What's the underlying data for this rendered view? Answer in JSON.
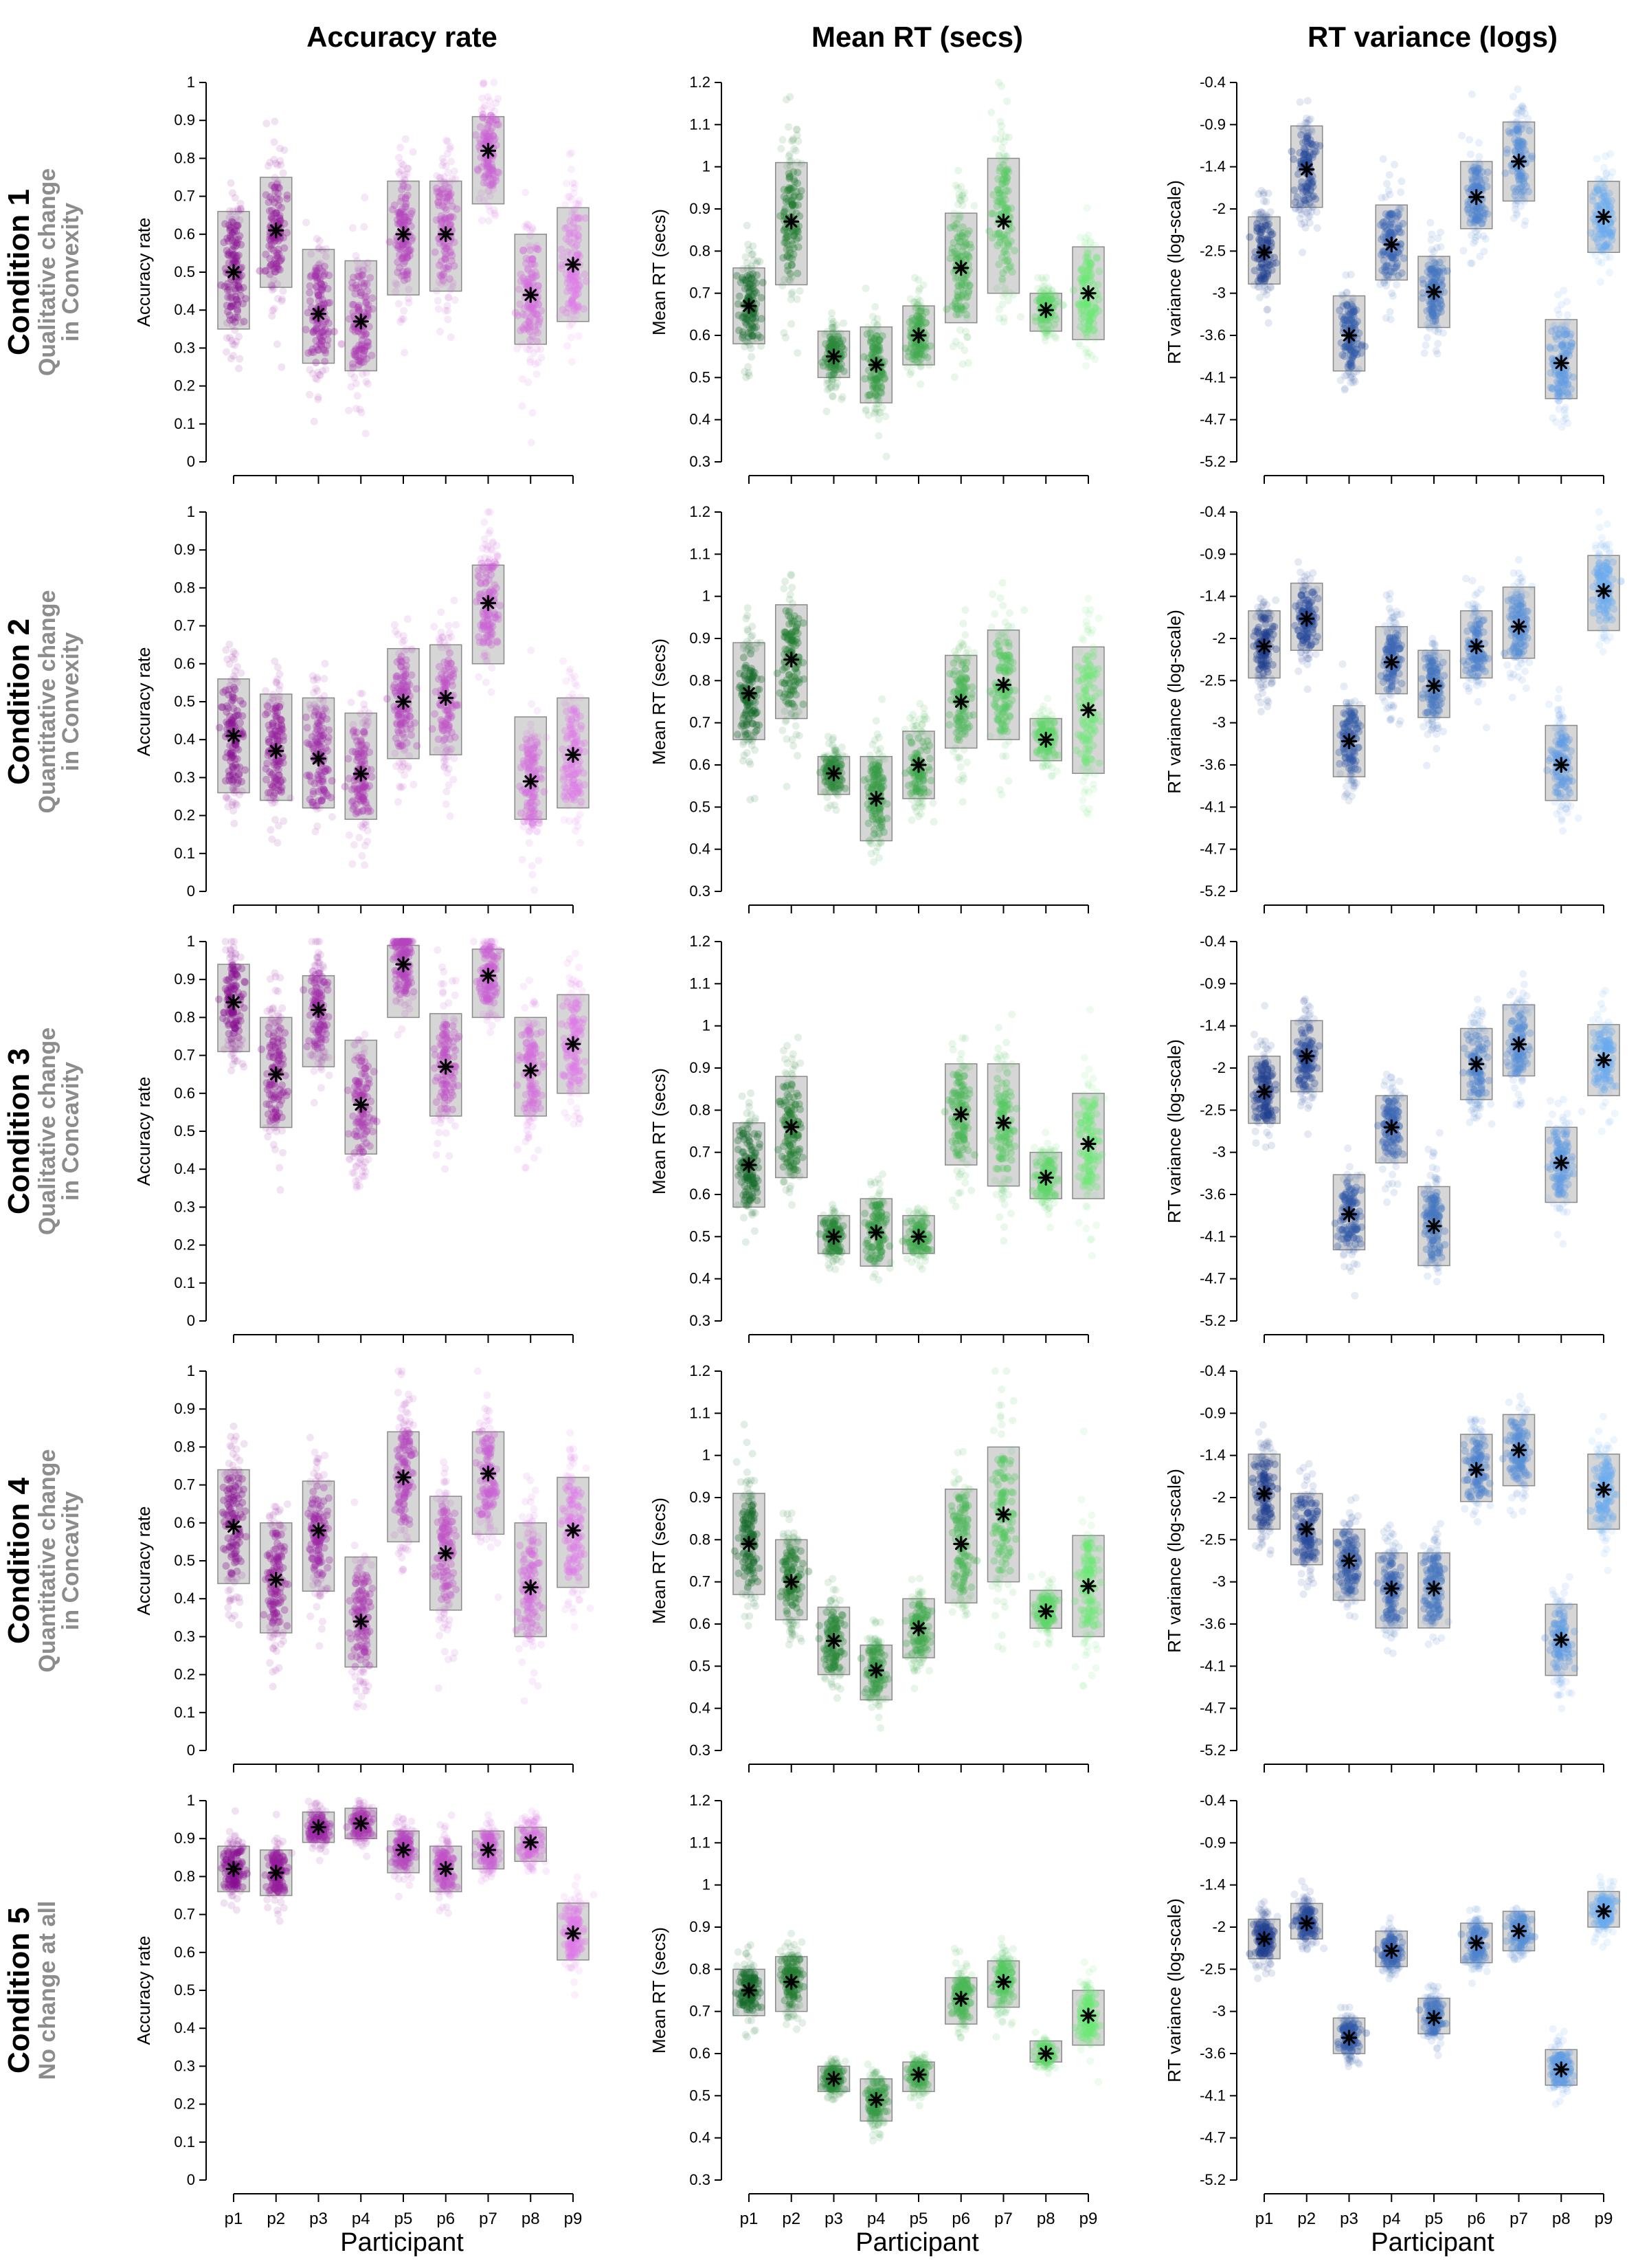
{
  "columns": [
    {
      "title": "Accuracy rate",
      "ylabel": "Accuracy rate",
      "yticks": [
        "0",
        "0.1",
        "0.2",
        "0.3",
        "0.4",
        "0.5",
        "0.6",
        "0.7",
        "0.8",
        "0.9",
        "1"
      ],
      "yrange": [
        0,
        1
      ],
      "color": "#c21fcb",
      "color_light": "#e07ae8",
      "color_dark": "#8a0e92"
    },
    {
      "title": "Mean RT (secs)",
      "ylabel": "Mean RT (secs)",
      "yticks": [
        "0.3",
        "0.4",
        "0.5",
        "0.6",
        "0.7",
        "0.8",
        "0.9",
        "1",
        "1.1",
        "1.2"
      ],
      "yrange": [
        0.3,
        1.2
      ],
      "color": "#2aa335",
      "color_light": "#6be872",
      "color_dark": "#146b27"
    },
    {
      "title": "RT variance (logs)",
      "ylabel": "RT variance (log-scale)",
      "yticks": [
        "-5.2",
        "-4.7",
        "-4.1",
        "-3.6",
        "-3",
        "-2.5",
        "-2",
        "-1.4",
        "-0.9",
        "-0.4"
      ],
      "yrange": [
        -5.2,
        -0.4
      ],
      "color": "#3a74c2",
      "color_light": "#6aaaf0",
      "color_dark": "#1f3f8f"
    }
  ],
  "conditions": [
    {
      "title": "Condition 1",
      "subtitle_1": "Qualitative change",
      "subtitle_2": "in Convexity"
    },
    {
      "title": "Condition 2",
      "subtitle_1": "Quantitative change",
      "subtitle_2": "in Convexity"
    },
    {
      "title": "Condition 3",
      "subtitle_1": "Qualitative change",
      "subtitle_2": "in Concavity"
    },
    {
      "title": "Condition 4",
      "subtitle_1": "Quantitative change",
      "subtitle_2": "in Concavity"
    },
    {
      "title": "Condition 5",
      "subtitle_1": "No change at all",
      "subtitle_2": ""
    }
  ],
  "xlabel": "Participant",
  "participants": [
    "p1",
    "p2",
    "p3",
    "p4",
    "p5",
    "p6",
    "p7",
    "p8",
    "p9"
  ],
  "chart_data": [
    {
      "type": "scatter",
      "condition": "Condition 1",
      "column": "Accuracy rate",
      "means": [
        0.5,
        0.61,
        0.39,
        0.37,
        0.6,
        0.6,
        0.82,
        0.44,
        0.52
      ],
      "box_low": [
        0.35,
        0.46,
        0.26,
        0.24,
        0.44,
        0.45,
        0.68,
        0.31,
        0.37
      ],
      "box_high": [
        0.66,
        0.75,
        0.56,
        0.53,
        0.74,
        0.74,
        0.91,
        0.6,
        0.67
      ]
    },
    {
      "type": "scatter",
      "condition": "Condition 1",
      "column": "Mean RT (secs)",
      "means": [
        0.67,
        0.87,
        0.55,
        0.53,
        0.6,
        0.76,
        0.87,
        0.66,
        0.7
      ],
      "box_low": [
        0.58,
        0.72,
        0.5,
        0.44,
        0.53,
        0.63,
        0.7,
        0.61,
        0.59
      ],
      "box_high": [
        0.76,
        1.01,
        0.61,
        0.62,
        0.67,
        0.89,
        1.02,
        0.7,
        0.81
      ]
    },
    {
      "type": "scatter",
      "condition": "Condition 1",
      "column": "RT variance (logs)",
      "means": [
        -2.55,
        -1.5,
        -3.6,
        -2.45,
        -3.05,
        -1.85,
        -1.4,
        -3.95,
        -2.1
      ],
      "box_low": [
        -2.95,
        -1.98,
        -4.05,
        -2.9,
        -3.5,
        -2.25,
        -1.9,
        -4.4,
        -2.55
      ],
      "box_high": [
        -2.1,
        -0.95,
        -3.1,
        -1.95,
        -2.6,
        -1.4,
        -0.9,
        -3.4,
        -1.65
      ]
    },
    {
      "type": "scatter",
      "condition": "Condition 2",
      "column": "Accuracy rate",
      "means": [
        0.41,
        0.37,
        0.35,
        0.31,
        0.5,
        0.51,
        0.76,
        0.29,
        0.36
      ],
      "box_low": [
        0.26,
        0.24,
        0.22,
        0.19,
        0.35,
        0.36,
        0.6,
        0.19,
        0.22
      ],
      "box_high": [
        0.56,
        0.52,
        0.51,
        0.47,
        0.64,
        0.65,
        0.86,
        0.46,
        0.51
      ]
    },
    {
      "type": "scatter",
      "condition": "Condition 2",
      "column": "Mean RT (secs)",
      "means": [
        0.77,
        0.85,
        0.58,
        0.52,
        0.6,
        0.75,
        0.79,
        0.66,
        0.73
      ],
      "box_low": [
        0.66,
        0.71,
        0.53,
        0.42,
        0.52,
        0.64,
        0.66,
        0.61,
        0.58
      ],
      "box_high": [
        0.89,
        0.98,
        0.62,
        0.62,
        0.68,
        0.86,
        0.92,
        0.71,
        0.88
      ]
    },
    {
      "type": "scatter",
      "condition": "Condition 2",
      "column": "RT variance (logs)",
      "means": [
        -2.1,
        -1.75,
        -3.3,
        -2.3,
        -2.6,
        -2.1,
        -1.85,
        -3.6,
        -1.4
      ],
      "box_low": [
        -2.5,
        -2.15,
        -3.75,
        -2.7,
        -3.0,
        -2.5,
        -2.25,
        -4.05,
        -1.9
      ],
      "box_high": [
        -1.65,
        -1.3,
        -2.85,
        -1.85,
        -2.15,
        -1.65,
        -1.35,
        -3.1,
        -0.95
      ]
    },
    {
      "type": "scatter",
      "condition": "Condition 3",
      "column": "Accuracy rate",
      "means": [
        0.84,
        0.65,
        0.82,
        0.57,
        0.94,
        0.67,
        0.91,
        0.66,
        0.73
      ],
      "box_low": [
        0.71,
        0.51,
        0.67,
        0.44,
        0.8,
        0.54,
        0.8,
        0.54,
        0.6
      ],
      "box_high": [
        0.94,
        0.8,
        0.91,
        0.74,
        0.99,
        0.81,
        0.98,
        0.8,
        0.86
      ]
    },
    {
      "type": "scatter",
      "condition": "Condition 3",
      "column": "Mean RT (secs)",
      "means": [
        0.67,
        0.76,
        0.5,
        0.51,
        0.5,
        0.79,
        0.77,
        0.64,
        0.72
      ],
      "box_low": [
        0.57,
        0.64,
        0.46,
        0.43,
        0.46,
        0.67,
        0.62,
        0.59,
        0.59
      ],
      "box_high": [
        0.77,
        0.88,
        0.55,
        0.59,
        0.55,
        0.91,
        0.91,
        0.7,
        0.84
      ]
    },
    {
      "type": "scatter",
      "condition": "Condition 3",
      "column": "RT variance (logs)",
      "means": [
        -2.3,
        -1.85,
        -3.85,
        -2.75,
        -4.0,
        -1.95,
        -1.7,
        -3.2,
        -1.9
      ],
      "box_low": [
        -2.7,
        -2.3,
        -4.3,
        -3.2,
        -4.5,
        -2.4,
        -2.1,
        -3.7,
        -2.35
      ],
      "box_high": [
        -1.85,
        -1.4,
        -3.35,
        -2.35,
        -3.5,
        -1.5,
        -1.2,
        -2.75,
        -1.45
      ]
    },
    {
      "type": "scatter",
      "condition": "Condition 4",
      "column": "Accuracy rate",
      "means": [
        0.59,
        0.45,
        0.58,
        0.34,
        0.72,
        0.52,
        0.73,
        0.43,
        0.58
      ],
      "box_low": [
        0.44,
        0.31,
        0.42,
        0.22,
        0.55,
        0.37,
        0.57,
        0.3,
        0.43
      ],
      "box_high": [
        0.74,
        0.6,
        0.71,
        0.51,
        0.84,
        0.67,
        0.84,
        0.6,
        0.72
      ]
    },
    {
      "type": "scatter",
      "condition": "Condition 4",
      "column": "Mean RT (secs)",
      "means": [
        0.79,
        0.7,
        0.56,
        0.49,
        0.59,
        0.79,
        0.86,
        0.63,
        0.69
      ],
      "box_low": [
        0.67,
        0.61,
        0.48,
        0.42,
        0.52,
        0.65,
        0.7,
        0.59,
        0.57
      ],
      "box_high": [
        0.91,
        0.8,
        0.64,
        0.55,
        0.66,
        0.92,
        1.02,
        0.68,
        0.81
      ]
    },
    {
      "type": "scatter",
      "condition": "Condition 4",
      "column": "RT variance (logs)",
      "means": [
        -1.95,
        -2.4,
        -2.8,
        -3.15,
        -3.15,
        -1.65,
        -1.4,
        -3.8,
        -1.9
      ],
      "box_low": [
        -2.4,
        -2.85,
        -3.3,
        -3.65,
        -3.65,
        -2.05,
        -1.85,
        -4.25,
        -2.4
      ],
      "box_high": [
        -1.45,
        -1.95,
        -2.4,
        -2.7,
        -2.7,
        -1.2,
        -0.95,
        -3.35,
        -1.45
      ]
    },
    {
      "type": "scatter",
      "condition": "Condition 5",
      "column": "Accuracy rate",
      "means": [
        0.82,
        0.81,
        0.93,
        0.94,
        0.87,
        0.82,
        0.87,
        0.89,
        0.65
      ],
      "box_low": [
        0.76,
        0.75,
        0.89,
        0.9,
        0.81,
        0.76,
        0.82,
        0.84,
        0.58
      ],
      "box_high": [
        0.88,
        0.87,
        0.97,
        0.98,
        0.92,
        0.88,
        0.92,
        0.93,
        0.73
      ]
    },
    {
      "type": "scatter",
      "condition": "Condition 5",
      "column": "Mean RT (secs)",
      "means": [
        0.75,
        0.77,
        0.54,
        0.49,
        0.55,
        0.73,
        0.77,
        0.6,
        0.69
      ],
      "box_low": [
        0.69,
        0.7,
        0.51,
        0.44,
        0.51,
        0.67,
        0.71,
        0.58,
        0.62
      ],
      "box_high": [
        0.8,
        0.83,
        0.57,
        0.54,
        0.58,
        0.78,
        0.82,
        0.63,
        0.75
      ]
    },
    {
      "type": "scatter",
      "condition": "Condition 5",
      "column": "RT variance (logs)",
      "means": [
        -2.15,
        -1.95,
        -3.4,
        -2.3,
        -3.15,
        -2.2,
        -2.05,
        -3.8,
        -1.8
      ],
      "box_low": [
        -2.4,
        -2.15,
        -3.6,
        -2.5,
        -3.35,
        -2.45,
        -2.3,
        -4.0,
        -2.0
      ],
      "box_high": [
        -1.9,
        -1.7,
        -3.15,
        -2.05,
        -2.9,
        -1.95,
        -1.8,
        -3.55,
        -1.55
      ]
    }
  ]
}
